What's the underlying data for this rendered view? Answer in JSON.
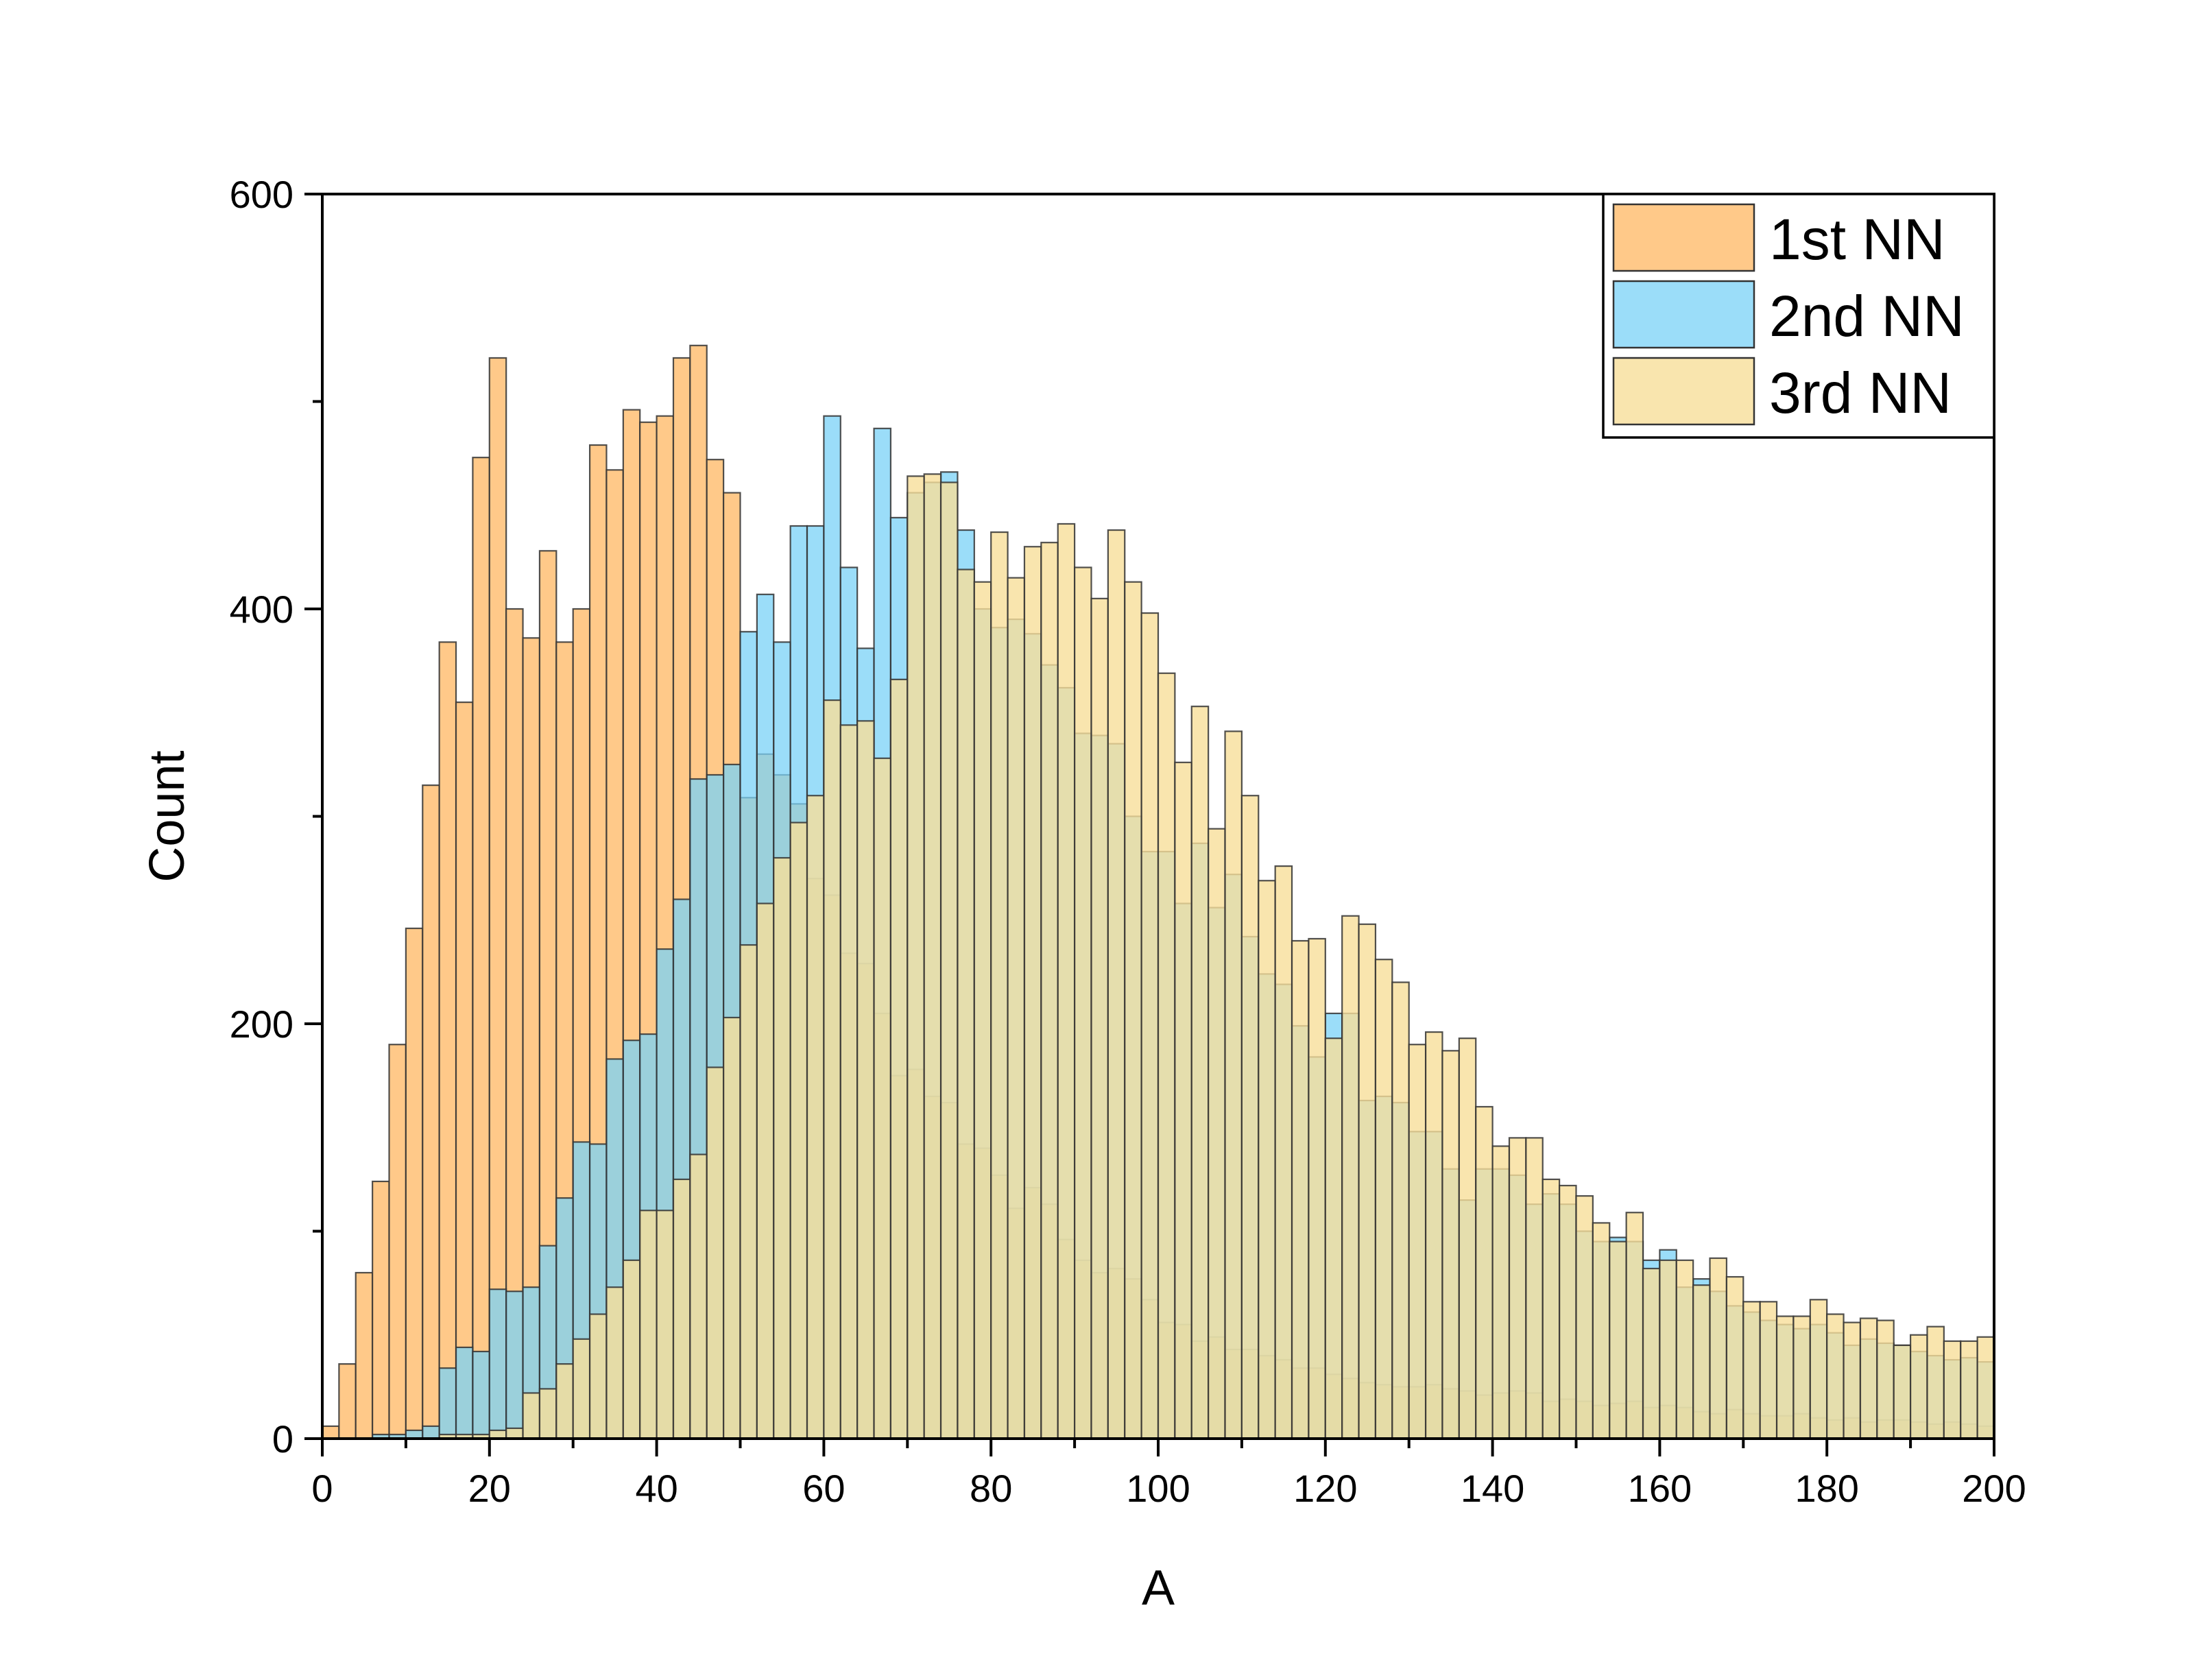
{
  "chart_data": {
    "type": "bar",
    "xlabel": "A",
    "ylabel": "Count",
    "xlim": [
      0,
      200
    ],
    "ylim": [
      0,
      600
    ],
    "x_ticks": [
      0,
      20,
      40,
      60,
      80,
      100,
      120,
      140,
      160,
      180,
      200
    ],
    "y_ticks": [
      0,
      200,
      400,
      600
    ],
    "bin_width": 2,
    "bin_starts": [
      0,
      2,
      4,
      6,
      8,
      10,
      12,
      14,
      16,
      18,
      20,
      22,
      24,
      26,
      28,
      30,
      32,
      34,
      36,
      38,
      40,
      42,
      44,
      46,
      48,
      50,
      52,
      54,
      56,
      58,
      60,
      62,
      64,
      66,
      68,
      70,
      72,
      74,
      76,
      78,
      80,
      82,
      84,
      86,
      88,
      90,
      92,
      94,
      96,
      98,
      100,
      102,
      104,
      106,
      108,
      110,
      112,
      114,
      116,
      118,
      120,
      122,
      124,
      126,
      128,
      130,
      132,
      134,
      136,
      138,
      140,
      142,
      144,
      146,
      148,
      150,
      152,
      154,
      156,
      158,
      160,
      162,
      164,
      166,
      168,
      170,
      172,
      174,
      176,
      178,
      180,
      182,
      184,
      186,
      188,
      190,
      192,
      194,
      196,
      198
    ],
    "legend_position": "top-right",
    "grid": false,
    "series": [
      {
        "name": "1st NN",
        "color": "#ffc989",
        "opacity": 1,
        "values": [
          6,
          36,
          80,
          124,
          190,
          246,
          315,
          384,
          355,
          473,
          521,
          400,
          386,
          428,
          384,
          400,
          479,
          467,
          496,
          490,
          493,
          521,
          527,
          472,
          456,
          309,
          330,
          320,
          306,
          270,
          262,
          234,
          229,
          205,
          175,
          178,
          165,
          162,
          142,
          140,
          127,
          111,
          121,
          113,
          96,
          86,
          80,
          82,
          77,
          67,
          56,
          55,
          47,
          49,
          43,
          43,
          40,
          38,
          34,
          34,
          31,
          29,
          27,
          26,
          25,
          25,
          26,
          24,
          23,
          21,
          22,
          23,
          22,
          18,
          19,
          18,
          16,
          17,
          18,
          15,
          16,
          15,
          13,
          12,
          14,
          12,
          11,
          11,
          12,
          10,
          9,
          10,
          8,
          9,
          9,
          8,
          7,
          8,
          7,
          6
        ]
      },
      {
        "name": "2nd NN",
        "color": "#7ad2f7",
        "opacity": 0.75,
        "values": [
          0,
          0,
          0,
          2,
          2,
          4,
          6,
          34,
          44,
          42,
          72,
          71,
          73,
          93,
          116,
          143,
          142,
          183,
          192,
          195,
          236,
          260,
          318,
          320,
          325,
          389,
          407,
          384,
          440,
          440,
          493,
          420,
          381,
          487,
          444,
          456,
          461,
          466,
          438,
          400,
          391,
          395,
          388,
          373,
          362,
          340,
          339,
          335,
          300,
          283,
          283,
          258,
          287,
          256,
          272,
          242,
          224,
          219,
          199,
          184,
          205,
          205,
          163,
          165,
          162,
          148,
          148,
          130,
          115,
          130,
          130,
          127,
          113,
          118,
          113,
          100,
          95,
          97,
          95,
          86,
          91,
          73,
          77,
          71,
          64,
          61,
          57,
          55,
          53,
          55,
          51,
          45,
          48,
          46,
          45,
          42,
          40,
          38,
          39,
          37
        ]
      },
      {
        "name": "3rd NN",
        "color": "#f7de9a",
        "opacity": 0.8,
        "values": [
          0,
          0,
          0,
          0,
          0,
          0,
          0,
          2,
          2,
          2,
          4,
          5,
          22,
          24,
          36,
          48,
          60,
          73,
          86,
          110,
          110,
          125,
          137,
          179,
          203,
          238,
          258,
          280,
          297,
          310,
          356,
          344,
          346,
          328,
          366,
          464,
          465,
          461,
          419,
          413,
          437,
          415,
          430,
          432,
          441,
          420,
          405,
          438,
          413,
          398,
          369,
          326,
          353,
          294,
          341,
          310,
          269,
          276,
          240,
          241,
          193,
          252,
          248,
          231,
          220,
          190,
          196,
          187,
          193,
          160,
          141,
          145,
          145,
          125,
          122,
          117,
          104,
          95,
          109,
          82,
          86,
          86,
          74,
          87,
          78,
          66,
          66,
          59,
          59,
          67,
          60,
          56,
          58,
          57,
          45,
          50,
          54,
          47,
          47,
          49
        ]
      }
    ]
  }
}
